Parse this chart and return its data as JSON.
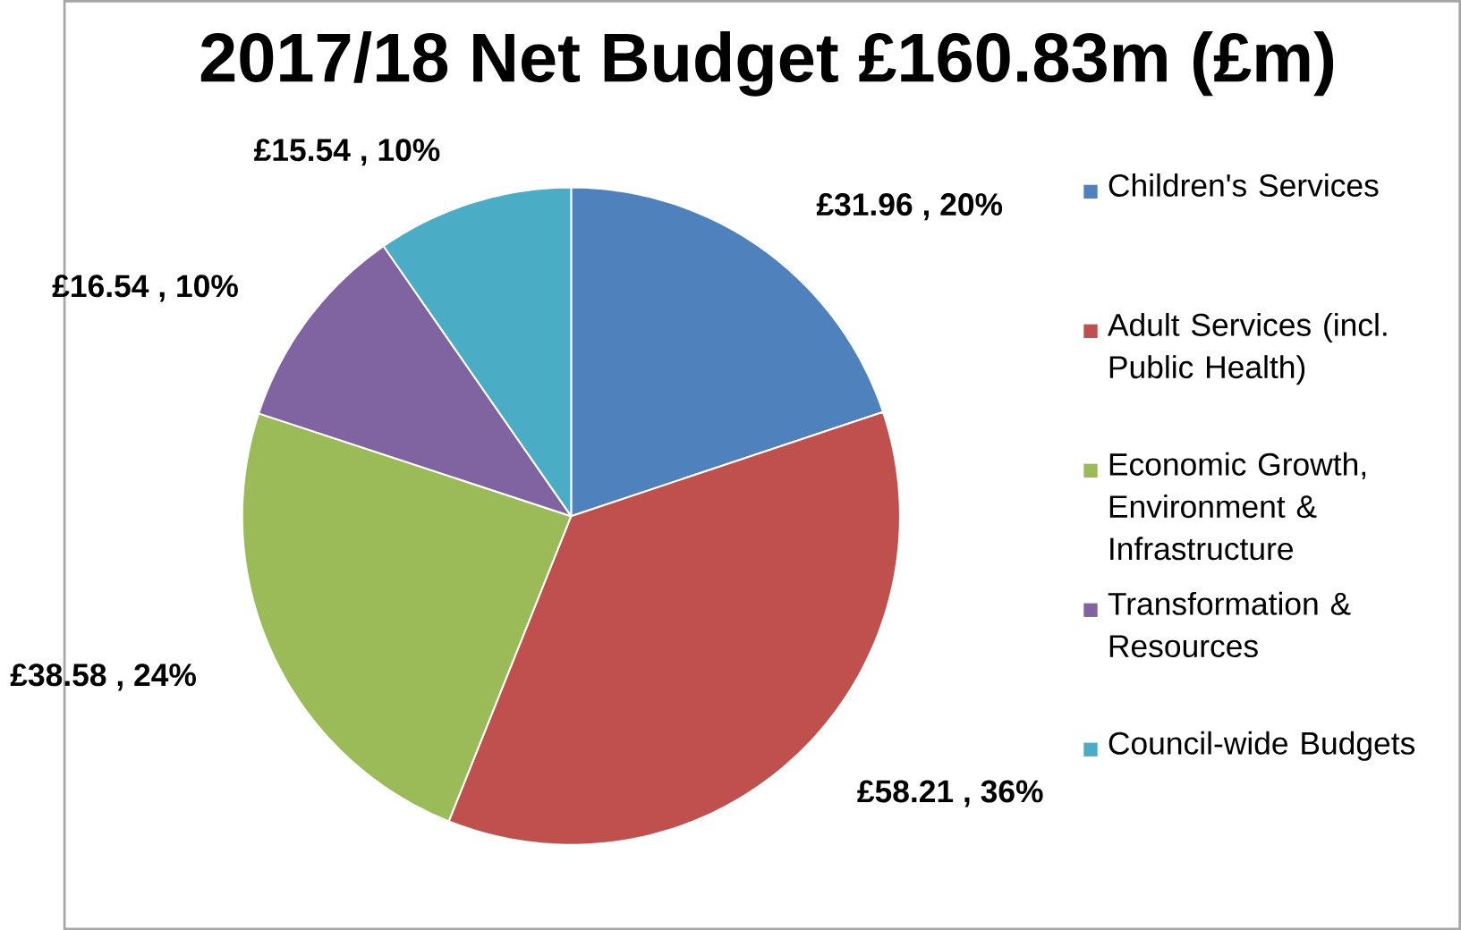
{
  "chart_data": {
    "type": "pie",
    "title": "2017/18 Net Budget £160.83m (£m)",
    "categories": [
      "Children's Services",
      "Adult Services (incl. Public Health)",
      "Economic Growth, Environment & Infrastructure",
      "Transformation & Resources",
      "Council-wide Budgets"
    ],
    "values": [
      31.96,
      58.21,
      38.58,
      16.54,
      15.54
    ],
    "colors": [
      "#4f81bd",
      "#c0504d",
      "#9bbb59",
      "#8064a2",
      "#4bacc6"
    ],
    "value_labels": [
      "£31.96 , 20%",
      "£58.21 , 36%",
      "£38.58 , 24%",
      "£16.54 , 10%",
      "£15.54 , 10%"
    ],
    "legend": "right"
  }
}
